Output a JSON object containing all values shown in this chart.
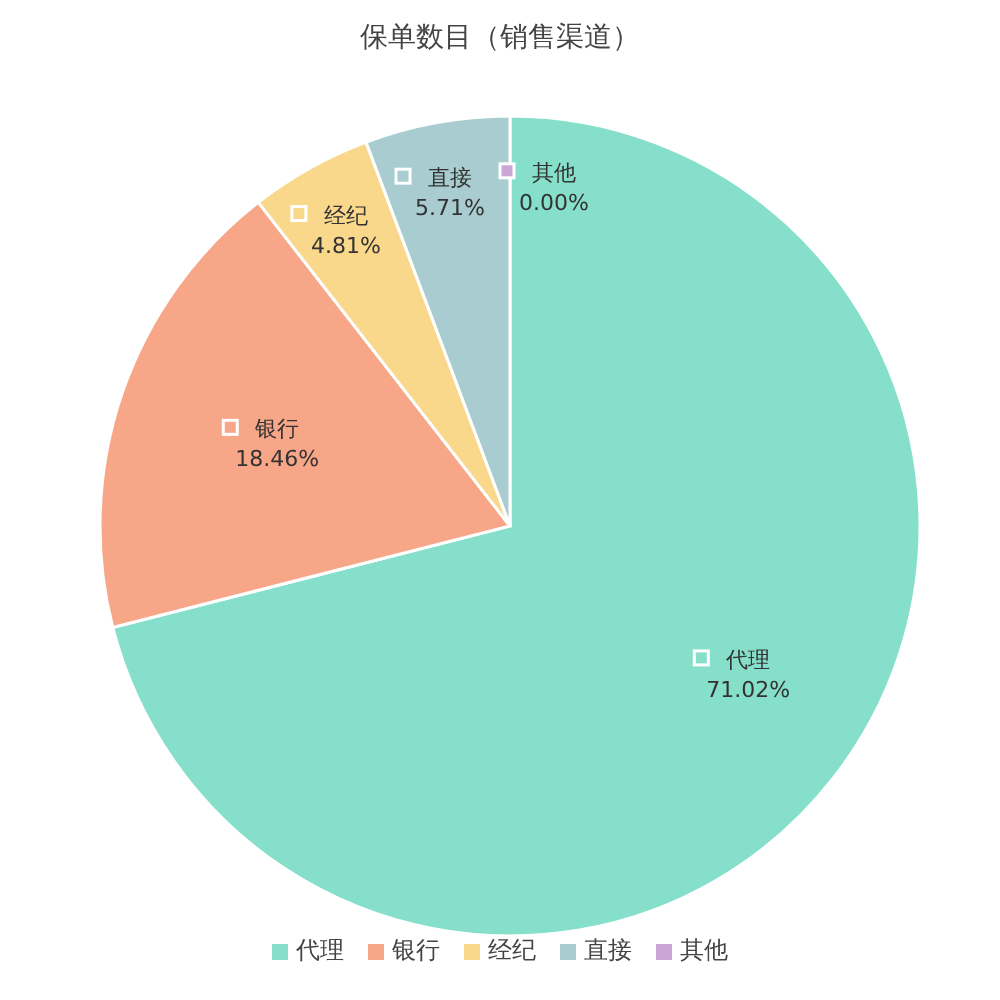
{
  "chart_data": {
    "type": "pie",
    "title": "保单数目（销售渠道）",
    "categories": [
      "代理",
      "银行",
      "经纪",
      "直接",
      "其他"
    ],
    "values": [
      71.02,
      18.46,
      4.81,
      5.71,
      0.0
    ],
    "value_labels": [
      "71.02%",
      "18.46%",
      "4.81%",
      "5.71%",
      "0.00%"
    ],
    "colors": [
      "#86dfca",
      "#f7a688",
      "#f9d78b",
      "#a8cccf",
      "#c9a6d6"
    ],
    "legend": "bottom"
  }
}
